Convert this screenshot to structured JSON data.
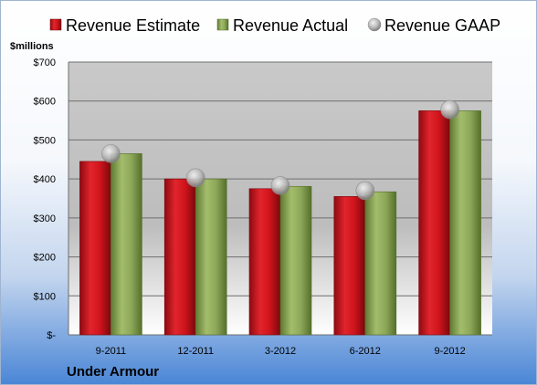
{
  "chart_data": {
    "type": "bar",
    "title": "",
    "xlabel": "",
    "ylabel": "$millions",
    "company": "Under Armour",
    "categories": [
      "9-2011",
      "12-2011",
      "3-2012",
      "6-2012",
      "9-2012"
    ],
    "series": [
      {
        "name": "Revenue Estimate",
        "kind": "bar",
        "color": "#d0141c",
        "values": [
          445,
          400,
          375,
          355,
          575
        ]
      },
      {
        "name": "Revenue Actual",
        "kind": "bar",
        "color": "#8ea85a",
        "values": [
          465,
          400,
          381,
          367,
          575
        ]
      },
      {
        "name": "Revenue GAAP",
        "kind": "marker",
        "color": "#b0b0b0",
        "values": [
          465,
          403,
          383,
          370,
          578
        ]
      }
    ],
    "ylim": [
      0,
      700
    ],
    "yticks": [
      0,
      100,
      200,
      300,
      400,
      500,
      600,
      700
    ],
    "ytick_labels": [
      "$-",
      "$100",
      "$200",
      "$300",
      "$400",
      "$500",
      "$600",
      "$700"
    ],
    "grid": true,
    "legend_position": "top"
  }
}
